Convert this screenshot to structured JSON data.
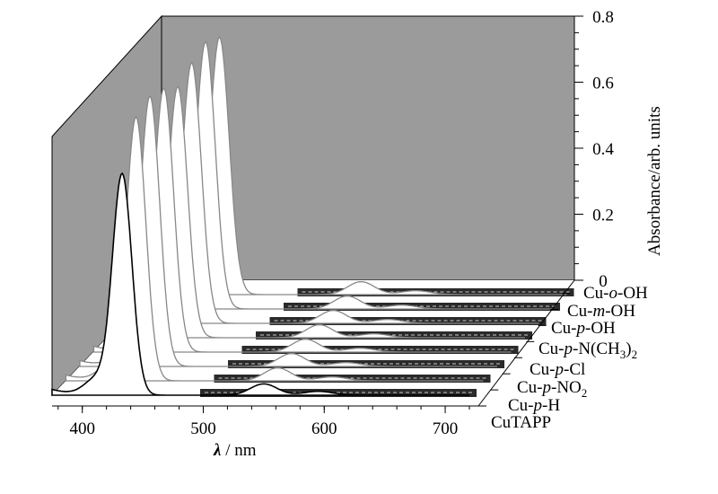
{
  "chart_data": {
    "type": "line",
    "subtype": "3d-waterfall-spectra",
    "xlabel_symbol": "λ",
    "xlabel_unit": " / nm",
    "ylabel": "Absorbance/arb. units",
    "x_ticks": [
      "400",
      "500",
      "600",
      "700"
    ],
    "y_ticks": [
      "0",
      "0.2",
      "0.4",
      "0.6",
      "0.8"
    ],
    "xlim": [
      375,
      720
    ],
    "ylim": [
      0,
      0.8
    ],
    "background_color": "#9b9b9b",
    "series": [
      {
        "label_parts": [
          {
            "t": "CuTAPP"
          }
        ],
        "soret_peak_nm": 433,
        "soret_abs": 0.68,
        "q_band_nm": 550,
        "q_abs": 0.035
      },
      {
        "label_parts": [
          {
            "t": "Cu-"
          },
          {
            "t": "p",
            "style": "italic"
          },
          {
            "t": "-H"
          }
        ],
        "soret_peak_nm": 433,
        "soret_abs": 0.81,
        "q_band_nm": 550,
        "q_abs": 0.04
      },
      {
        "label_parts": [
          {
            "t": "Cu-"
          },
          {
            "t": "p",
            "style": "italic"
          },
          {
            "t": "-NO"
          },
          {
            "t": "2",
            "style": "sub"
          }
        ],
        "soret_peak_nm": 433,
        "soret_abs": 0.83,
        "q_band_nm": 550,
        "q_abs": 0.04
      },
      {
        "label_parts": [
          {
            "t": "Cu-"
          },
          {
            "t": "p",
            "style": "italic"
          },
          {
            "t": "-Cl"
          }
        ],
        "soret_peak_nm": 433,
        "soret_abs": 0.81,
        "q_band_nm": 550,
        "q_abs": 0.04
      },
      {
        "label_parts": [
          {
            "t": "Cu-"
          },
          {
            "t": "p",
            "style": "italic"
          },
          {
            "t": "-N(CH"
          },
          {
            "t": "3",
            "style": "sub"
          },
          {
            "t": ")"
          },
          {
            "t": "2",
            "style": "sub"
          }
        ],
        "soret_peak_nm": 433,
        "soret_abs": 0.77,
        "q_band_nm": 550,
        "q_abs": 0.04
      },
      {
        "label_parts": [
          {
            "t": "Cu-"
          },
          {
            "t": "p",
            "style": "italic"
          },
          {
            "t": "-OH"
          }
        ],
        "soret_peak_nm": 433,
        "soret_abs": 0.8,
        "q_band_nm": 550,
        "q_abs": 0.04
      },
      {
        "label_parts": [
          {
            "t": "Cu-"
          },
          {
            "t": "m",
            "style": "italic"
          },
          {
            "t": "-OH"
          }
        ],
        "soret_peak_nm": 433,
        "soret_abs": 0.82,
        "q_band_nm": 550,
        "q_abs": 0.04
      },
      {
        "label_parts": [
          {
            "t": "Cu-"
          },
          {
            "t": "o",
            "style": "italic"
          },
          {
            "t": "-OH"
          }
        ],
        "soret_peak_nm": 433,
        "soret_abs": 0.79,
        "q_band_nm": 550,
        "q_abs": 0.04
      }
    ]
  }
}
